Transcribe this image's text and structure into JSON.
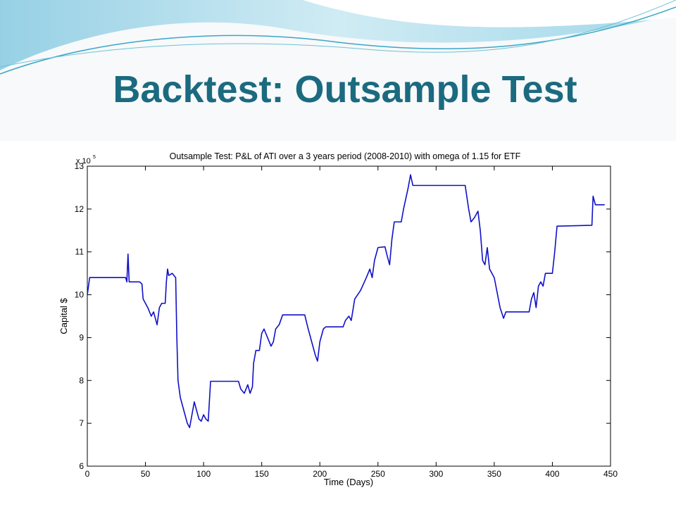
{
  "slide_title": "Backtest: Outsample Test",
  "chart_data": {
    "type": "line",
    "title": "Outsample Test: P&L of ATI over a 3 years period (2008-2010) with omega of 1.15 for ETF",
    "xlabel": "Time (Days)",
    "ylabel": "Capital $",
    "y_multiplier": {
      "base": "x 10",
      "exponent": "5"
    },
    "xlim": [
      0,
      450
    ],
    "xticks": [
      0,
      50,
      100,
      150,
      200,
      250,
      300,
      350,
      400,
      450
    ],
    "ylim": [
      6,
      13
    ],
    "yticks": [
      6,
      7,
      8,
      9,
      10,
      11,
      12,
      13
    ],
    "grid": false,
    "series": [
      {
        "name": "Capital",
        "color": "#1010c8",
        "x": [
          0,
          2,
          33,
          34,
          35,
          36,
          45,
          47,
          48,
          50,
          52,
          55,
          57,
          60,
          62,
          64,
          67,
          68,
          69,
          70,
          73,
          76,
          77,
          78,
          80,
          83,
          86,
          88,
          90,
          92,
          94,
          96,
          98,
          100,
          102,
          104,
          106,
          130,
          132,
          135,
          138,
          140,
          142,
          143,
          145,
          148,
          150,
          152,
          155,
          158,
          160,
          162,
          165,
          168,
          187,
          190,
          193,
          196,
          198,
          200,
          203,
          205,
          220,
          222,
          225,
          227,
          230,
          235,
          240,
          243,
          245,
          247,
          250,
          256,
          258,
          260,
          262,
          264,
          270,
          272,
          276,
          278,
          280,
          325,
          328,
          330,
          333,
          336,
          338,
          340,
          342,
          344,
          346,
          350,
          355,
          358,
          360,
          365,
          380,
          382,
          384,
          386,
          388,
          390,
          392,
          394,
          400,
          402,
          404,
          434,
          435,
          437,
          445
        ],
        "values": [
          10.0,
          10.4,
          10.4,
          10.3,
          10.95,
          10.3,
          10.3,
          10.25,
          9.9,
          9.8,
          9.7,
          9.5,
          9.6,
          9.3,
          9.7,
          9.8,
          9.8,
          10.3,
          10.6,
          10.45,
          10.5,
          10.4,
          9.0,
          8.0,
          7.6,
          7.3,
          7.0,
          6.9,
          7.2,
          7.5,
          7.3,
          7.1,
          7.05,
          7.2,
          7.1,
          7.05,
          7.98,
          7.98,
          7.8,
          7.7,
          7.9,
          7.7,
          7.85,
          8.4,
          8.7,
          8.7,
          9.1,
          9.2,
          9.0,
          8.8,
          8.9,
          9.2,
          9.3,
          9.53,
          9.53,
          9.2,
          8.9,
          8.6,
          8.45,
          8.9,
          9.2,
          9.25,
          9.25,
          9.4,
          9.5,
          9.4,
          9.9,
          10.1,
          10.4,
          10.6,
          10.4,
          10.8,
          11.1,
          11.12,
          10.9,
          10.7,
          11.3,
          11.7,
          11.7,
          12.0,
          12.5,
          12.8,
          12.55,
          12.55,
          12.0,
          11.7,
          11.8,
          11.95,
          11.5,
          10.8,
          10.7,
          11.1,
          10.6,
          10.4,
          9.7,
          9.45,
          9.6,
          9.6,
          9.6,
          9.9,
          10.05,
          9.7,
          10.2,
          10.3,
          10.2,
          10.5,
          10.5,
          11.0,
          11.6,
          11.62,
          12.3,
          12.1,
          12.1
        ]
      }
    ]
  }
}
